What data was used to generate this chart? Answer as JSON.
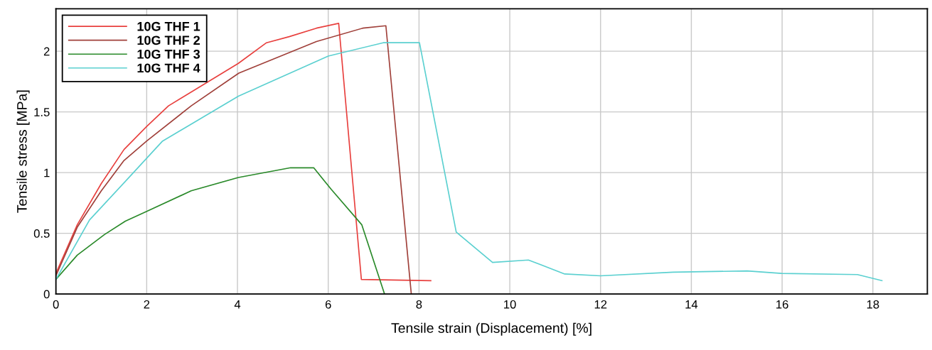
{
  "chart_data": {
    "type": "line",
    "xlabel": "Tensile strain (Displacement) [%]",
    "ylabel": "Tensile stress [MPa]",
    "xlim": [
      0,
      19.2
    ],
    "xticks": [
      0,
      2,
      4,
      6,
      8,
      10,
      12,
      14,
      16,
      18
    ],
    "ylim": [
      0,
      2.35
    ],
    "yticks": [
      0,
      0.5,
      1,
      1.5,
      2
    ],
    "grid": true,
    "legend": "top left",
    "marker": "none",
    "line_style": "solid",
    "series": [
      {
        "name": "10G THF 1",
        "color": "#e8403e",
        "x": [
          0,
          0.47,
          1.0,
          1.5,
          2.0,
          2.48,
          4.02,
          4.64,
          5.14,
          5.74,
          6.23,
          6.73,
          8.26
        ],
        "values": [
          0.17,
          0.57,
          0.91,
          1.19,
          1.38,
          1.55,
          1.9,
          2.07,
          2.12,
          2.19,
          2.23,
          0.12,
          0.11
        ]
      },
      {
        "name": "10G THF 2",
        "color": "#a0403a",
        "x": [
          0,
          0.47,
          1.0,
          1.5,
          2.0,
          2.98,
          4.03,
          5.74,
          6.76,
          7.27,
          7.83
        ],
        "values": [
          0.15,
          0.55,
          0.85,
          1.1,
          1.26,
          1.55,
          1.82,
          2.08,
          2.19,
          2.21,
          0
        ]
      },
      {
        "name": "10G THF 3",
        "color": "#2a8a2a",
        "x": [
          0,
          0.47,
          1.07,
          1.53,
          2.0,
          2.98,
          4.02,
          5.17,
          5.68,
          6.07,
          6.74,
          7.24
        ],
        "values": [
          0.12,
          0.32,
          0.49,
          0.6,
          0.68,
          0.85,
          0.96,
          1.04,
          1.04,
          0.86,
          0.57,
          0
        ]
      },
      {
        "name": "10G THF 4",
        "color": "#5bd0d0",
        "x": [
          0,
          0.74,
          1.56,
          2.35,
          4.02,
          6.0,
          7.21,
          8.01,
          8.82,
          9.62,
          10.41,
          11.21,
          12.0,
          13.6,
          15.23,
          15.99,
          17.66,
          18.2
        ],
        "values": [
          0.12,
          0.61,
          0.94,
          1.26,
          1.63,
          1.96,
          2.07,
          2.07,
          0.51,
          0.26,
          0.28,
          0.165,
          0.15,
          0.18,
          0.19,
          0.17,
          0.16,
          0.11
        ]
      }
    ]
  }
}
